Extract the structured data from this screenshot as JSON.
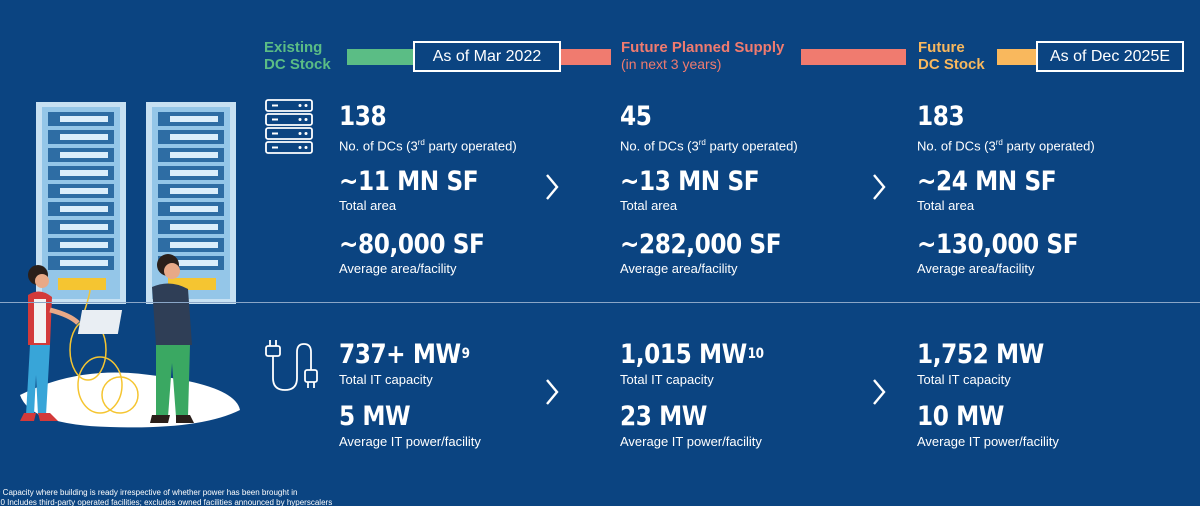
{
  "header": {
    "existing": {
      "line1": "Existing",
      "line2": "DC Stock",
      "color": "#5bbd85"
    },
    "as_of_mar": "As of Mar 2022",
    "future_planned": {
      "line1": "Future Planned Supply",
      "line2": "(in next 3 years)",
      "color": "#f07b6f"
    },
    "future_stock": {
      "line1": "Future",
      "line2": "DC Stock",
      "color": "#f9b85d"
    },
    "as_of_dec": "As of Dec 2025E"
  },
  "columns": [
    {
      "dcs": "138",
      "dcs_label_pre": "No. of DCs (3",
      "dcs_label_sup": "rd",
      "dcs_label_post": " party operated)",
      "area": "~11 MN SF",
      "area_label": "Total area",
      "avg_area": "~80,000 SF",
      "avg_area_label": "Average area/facility",
      "capacity": "737+ MW",
      "capacity_sup": "9",
      "capacity_label": "Total IT capacity",
      "power": "5 MW",
      "power_label": "Average IT power/facility"
    },
    {
      "dcs": "45",
      "dcs_label_pre": "No. of DCs (3",
      "dcs_label_sup": "rd",
      "dcs_label_post": " party operated)",
      "area": "~13 MN SF",
      "area_label": "Total area",
      "avg_area": "~282,000 SF",
      "avg_area_label": "Average area/facility",
      "capacity": "1,015 MW",
      "capacity_sup": "10",
      "capacity_label": "Total IT capacity",
      "power": "23 MW",
      "power_label": "Average IT power/facility"
    },
    {
      "dcs": "183",
      "dcs_label_pre": "No. of DCs (3",
      "dcs_label_sup": "rd",
      "dcs_label_post": " party operated)",
      "area": "~24 MN SF",
      "area_label": "Total area",
      "avg_area": "~130,000 SF",
      "avg_area_label": "Average area/facility",
      "capacity": "1,752 MW",
      "capacity_sup": "",
      "capacity_label": "Total IT capacity",
      "power": "10 MW",
      "power_label": "Average IT power/facility"
    }
  ],
  "footnotes": [
    "9  Capacity where building is ready irrespective of whether power has been brought in",
    "10 Includes third-party operated facilities; excludes owned facilities announced by hyperscalers"
  ],
  "icons": {
    "server": "server-stack-icon",
    "plug": "power-plug-icon",
    "chevron": "chevron-right-icon",
    "illustration": "data-center-workers-illustration"
  }
}
